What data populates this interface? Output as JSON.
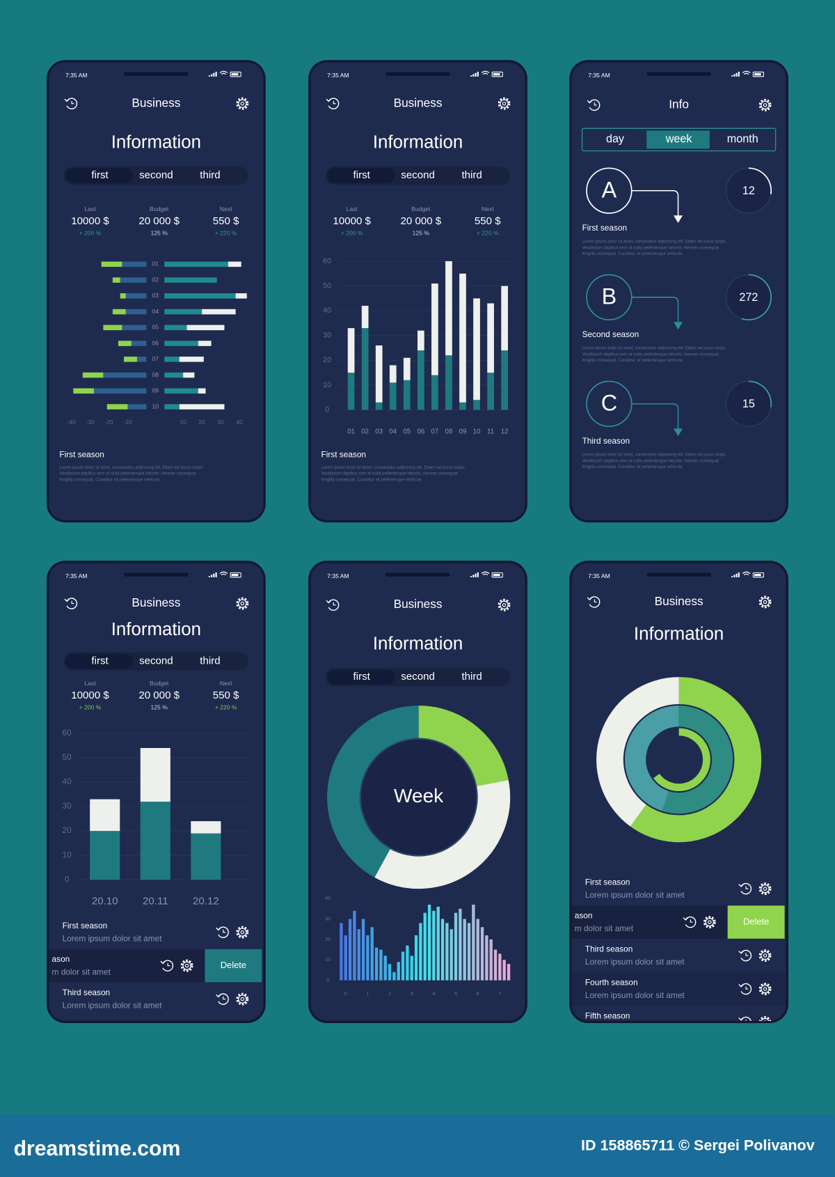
{
  "status_time": "7:35 AM",
  "screens": [
    {
      "header": "Business",
      "title": "Information",
      "tabs": [
        "first",
        "second",
        "third"
      ],
      "stats": [
        {
          "label": "Last",
          "value": "10000 $",
          "change": "+ 200 %"
        },
        {
          "label": "Budget",
          "value": "20 000 $",
          "change": "125 %"
        },
        {
          "label": "Next",
          "value": "550 $",
          "change": "+ 220 %"
        }
      ],
      "chart": {
        "type": "butterfly",
        "categories": [
          "01",
          "02",
          "03",
          "04",
          "05",
          "06",
          "07",
          "08",
          "09",
          "10"
        ],
        "series": [
          {
            "color": "#2f5f8f",
            "values": [
              -13,
              -14,
              -11,
              -11,
              -13,
              -8,
              -5,
              -23,
              -28,
              -10
            ]
          },
          {
            "color": "#8fd44c",
            "values": [
              -11,
              -4,
              -3,
              -7,
              -10,
              -7,
              -7,
              -11,
              -11,
              -11
            ]
          },
          {
            "color": "#1f8a8f",
            "values": [
              34,
              28,
              38,
              20,
              12,
              18,
              8,
              10,
              18,
              8
            ]
          },
          {
            "color": "#eef0ee",
            "values": [
              7,
              0,
              6,
              18,
              20,
              7,
              13,
              6,
              4,
              24
            ]
          }
        ],
        "xlim": [
          -40,
          40
        ],
        "xticks": [
          -40,
          -30,
          -20,
          -10,
          10,
          20,
          30,
          40
        ]
      },
      "section": {
        "title": "First season",
        "text": [
          "Lorem ipsum dolor sit amet, consectetur adipiscing elit. Etiam vel purus turpis.",
          "Vestibulum dapibus sem at nulla pellentesque lobortis. Aenean consequat",
          "fringilla consequat. Curabitur sit pellentesque vehicula"
        ]
      }
    },
    {
      "header": "Business",
      "title": "Information",
      "tabs": [
        "first",
        "second",
        "third"
      ],
      "stats": [
        {
          "label": "Last",
          "value": "10000 $",
          "change": "+ 200 %"
        },
        {
          "label": "Budget",
          "value": "20 000 $",
          "change": "125 %"
        },
        {
          "label": "Next",
          "value": "550 $",
          "change": "+ 220 %"
        }
      ],
      "chart": {
        "type": "bar",
        "stacked": true,
        "categories": [
          "01",
          "02",
          "03",
          "04",
          "05",
          "06",
          "07",
          "08",
          "09",
          "10",
          "11",
          "12"
        ],
        "series": [
          {
            "color": "#1f7a80",
            "values": [
              15,
              33,
              3,
              11,
              12,
              24,
              14,
              22,
              3,
              4,
              15,
              24
            ]
          },
          {
            "color": "#eef0ee",
            "values": [
              18,
              9,
              23,
              7,
              9,
              8,
              37,
              38,
              52,
              41,
              28,
              26
            ]
          }
        ],
        "ylim": [
          0,
          60
        ],
        "yticks": [
          0,
          10,
          20,
          30,
          40,
          50,
          60
        ],
        "grid": true
      },
      "section": {
        "title": "First season",
        "text": [
          "Lorem ipsum dolor sit amet, consectetur adipiscing elit. Etiam vel purus turpis.",
          "Vestibulum dapibus sem at nulla pellentesque lobortis. Aenean consequat",
          "fringilla consequat. Curabitur sit pellentesque vehicula"
        ]
      }
    },
    {
      "header": "Info",
      "segments": [
        "day",
        "week",
        "month"
      ],
      "items": [
        {
          "letter": "A",
          "title": "First season",
          "count": "12",
          "text": [
            "Lorem ipsum dolor sit amet, consectetur adipiscing elit. Etiam vel purus turpis.",
            "Vestibulum dapibus sem at nulla pellentesque lobortis. Aenean consequat",
            "fringilla consequat. Curabitur sit pellentesque vehicula"
          ]
        },
        {
          "letter": "B",
          "title": "Second season",
          "count": "272",
          "text": [
            "Lorem ipsum dolor sit amet, consectetur adipiscing elit. Etiam vel purus turpis.",
            "Vestibulum dapibus sem at nulla pellentesque lobortis. Aenean consequat",
            "fringilla consequat. Curabitur sit pellentesque vehicula"
          ]
        },
        {
          "letter": "C",
          "title": "Third season",
          "count": "15",
          "text": [
            "Lorem ipsum dolor sit amet, consectetur adipiscing elit. Etiam vel purus turpis.",
            "Vestibulum dapibus sem at nulla pellentesque lobortis. Aenean consequat",
            "fringilla consequat. Curabitur sit pellentesque vehicula"
          ]
        }
      ]
    },
    {
      "header": "Business",
      "title": "Information",
      "tabs": [
        "first",
        "second",
        "third"
      ],
      "stats": [
        {
          "label": "Last",
          "value": "10000 $",
          "change": "+ 200 %"
        },
        {
          "label": "Budget",
          "value": "20 000 $",
          "change": "125 %"
        },
        {
          "label": "Next",
          "value": "550 $",
          "change": "+ 220 %"
        }
      ],
      "chart": {
        "type": "bar",
        "stacked": true,
        "categories": [
          "20.10",
          "20.11",
          "20.12"
        ],
        "series": [
          {
            "color": "#1f7a80",
            "values": [
              20,
              32,
              19
            ]
          },
          {
            "color": "#eef0ee",
            "values": [
              13,
              22,
              5
            ]
          }
        ],
        "ylim": [
          0,
          60
        ],
        "yticks": [
          0,
          10,
          20,
          30,
          40,
          50,
          60
        ],
        "grid": true
      },
      "list": [
        {
          "title": "First season",
          "subtitle": "Lorem ipsum dolor sit amet"
        },
        {
          "title": "ason",
          "subtitle": "m dolor sit amet",
          "action": "Delete"
        },
        {
          "title": "Third season",
          "subtitle": "Lorem ipsum dolor sit amet"
        }
      ]
    },
    {
      "header": "Business",
      "title": "Information",
      "tabs": [
        "first",
        "second",
        "third"
      ],
      "donut": {
        "type": "pie",
        "label": "Week",
        "values": [
          22,
          36,
          42
        ],
        "colors": [
          "#8fd44c",
          "#eef0ea",
          "#1f7a80"
        ]
      },
      "chart": {
        "type": "bar",
        "x": [
          -0.2,
          0,
          0.2,
          0.4,
          0.6,
          0.8,
          1,
          1.2,
          1.4,
          1.6,
          1.8,
          2,
          2.2,
          2.4,
          2.6,
          2.8,
          3,
          3.2,
          3.4,
          3.6,
          3.8,
          4,
          4.2,
          4.4,
          4.6,
          4.8,
          5,
          5.2,
          5.4,
          5.6,
          5.8,
          6,
          6.2,
          6.4,
          6.6,
          6.8,
          7,
          7.2,
          7.4
        ],
        "values": [
          28,
          22,
          30,
          34,
          25,
          30,
          22,
          26,
          16,
          15,
          12,
          8,
          4,
          9,
          14,
          17,
          12,
          22,
          28,
          33,
          37,
          34,
          36,
          30,
          28,
          25,
          33,
          35,
          30,
          28,
          37,
          30,
          26,
          22,
          20,
          15,
          13,
          10,
          8
        ],
        "colors": [
          "#4a6fe0",
          "#3ce0e8",
          "#f2a6d2"
        ],
        "xlim": [
          -0.5,
          7.5
        ],
        "xticks": [
          0,
          1,
          2,
          3,
          4,
          5,
          6,
          7
        ],
        "ylim": [
          0,
          40
        ],
        "yticks": [
          0,
          10,
          20,
          30,
          40
        ]
      }
    },
    {
      "header": "Business",
      "title": "Information",
      "rings": {
        "type": "donut",
        "rings": [
          {
            "values": [
              60,
              40
            ],
            "colors": [
              "#8fd44c",
              "#eef0ea"
            ]
          },
          {
            "values": [
              55,
              45
            ],
            "colors": [
              "#2e8c82",
              "#4a9ea5"
            ]
          },
          {
            "values": [
              65
            ],
            "colors": [
              "#8fd44c"
            ]
          }
        ]
      },
      "list": [
        {
          "title": "First season",
          "subtitle": "Lorem ipsum dolor sit amet"
        },
        {
          "title": "ason",
          "subtitle": "m dolor sit amet",
          "action": "Delete"
        },
        {
          "title": "Third season",
          "subtitle": "Lorem ipsum dolor sit amet"
        },
        {
          "title": "Fourth season",
          "subtitle": "Lorem ipsum dolor sit amet"
        },
        {
          "title": "Fifth season"
        }
      ]
    }
  ],
  "footer": {
    "brand": "dreamstime.com",
    "credit": "ID 158865711 © Sergei Polivanov"
  }
}
